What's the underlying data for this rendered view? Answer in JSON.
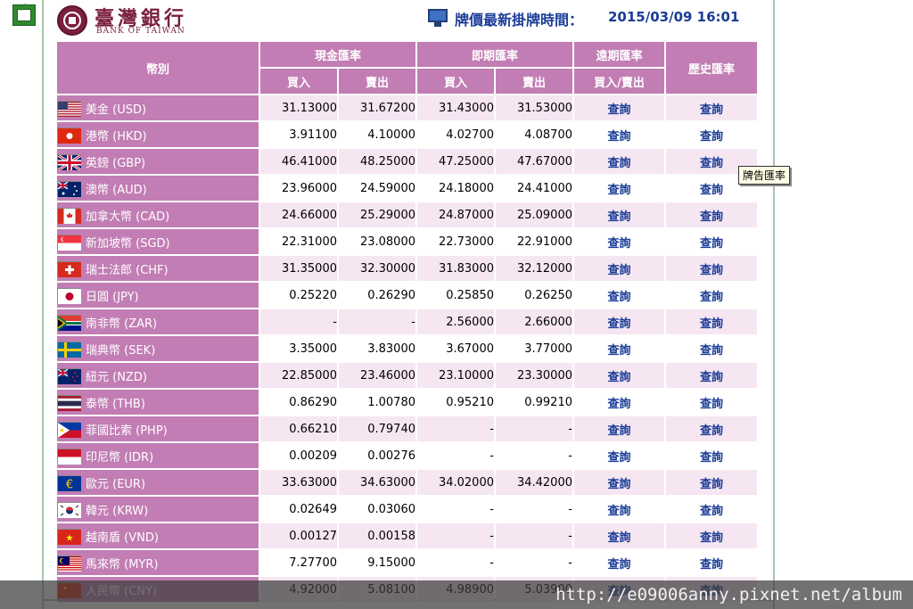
{
  "bank": {
    "name_zh": "臺灣銀行",
    "name_en": "BANK OF TAIWAN",
    "color": "#7a1f3d"
  },
  "update": {
    "label": "牌價最新掛牌時間：",
    "value": "2015/03/09 16:01"
  },
  "table": {
    "headers": {
      "currency": "幣別",
      "cash": "現金匯率",
      "spot": "即期匯率",
      "forward": "遠期匯率",
      "history": "歷史匯率",
      "buy": "買入",
      "sell": "賣出",
      "buy_sell": "買入/賣出"
    },
    "link_text": "查詢",
    "rows": [
      {
        "name": "美金 (USD)",
        "flag": "us",
        "cash_buy": "31.13000",
        "cash_sell": "31.67200",
        "spot_buy": "31.43000",
        "spot_sell": "31.53000"
      },
      {
        "name": "港幣 (HKD)",
        "flag": "hk",
        "cash_buy": "3.91100",
        "cash_sell": "4.10000",
        "spot_buy": "4.02700",
        "spot_sell": "4.08700"
      },
      {
        "name": "英鎊 (GBP)",
        "flag": "gb",
        "cash_buy": "46.41000",
        "cash_sell": "48.25000",
        "spot_buy": "47.25000",
        "spot_sell": "47.67000"
      },
      {
        "name": "澳幣 (AUD)",
        "flag": "au",
        "cash_buy": "23.96000",
        "cash_sell": "24.59000",
        "spot_buy": "24.18000",
        "spot_sell": "24.41000"
      },
      {
        "name": "加拿大幣 (CAD)",
        "flag": "ca",
        "cash_buy": "24.66000",
        "cash_sell": "25.29000",
        "spot_buy": "24.87000",
        "spot_sell": "25.09000"
      },
      {
        "name": "新加坡幣 (SGD)",
        "flag": "sg",
        "cash_buy": "22.31000",
        "cash_sell": "23.08000",
        "spot_buy": "22.73000",
        "spot_sell": "22.91000"
      },
      {
        "name": "瑞士法郎 (CHF)",
        "flag": "ch",
        "cash_buy": "31.35000",
        "cash_sell": "32.30000",
        "spot_buy": "31.83000",
        "spot_sell": "32.12000"
      },
      {
        "name": "日圓 (JPY)",
        "flag": "jp",
        "cash_buy": "0.25220",
        "cash_sell": "0.26290",
        "spot_buy": "0.25850",
        "spot_sell": "0.26250"
      },
      {
        "name": "南非幣 (ZAR)",
        "flag": "za",
        "cash_buy": "-",
        "cash_sell": "-",
        "spot_buy": "2.56000",
        "spot_sell": "2.66000"
      },
      {
        "name": "瑞典幣 (SEK)",
        "flag": "se",
        "cash_buy": "3.35000",
        "cash_sell": "3.83000",
        "spot_buy": "3.67000",
        "spot_sell": "3.77000"
      },
      {
        "name": "紐元 (NZD)",
        "flag": "nz",
        "cash_buy": "22.85000",
        "cash_sell": "23.46000",
        "spot_buy": "23.10000",
        "spot_sell": "23.30000"
      },
      {
        "name": "泰幣 (THB)",
        "flag": "th",
        "cash_buy": "0.86290",
        "cash_sell": "1.00780",
        "spot_buy": "0.95210",
        "spot_sell": "0.99210"
      },
      {
        "name": "菲國比索 (PHP)",
        "flag": "ph",
        "cash_buy": "0.66210",
        "cash_sell": "0.79740",
        "spot_buy": "-",
        "spot_sell": "-"
      },
      {
        "name": "印尼幣 (IDR)",
        "flag": "id",
        "cash_buy": "0.00209",
        "cash_sell": "0.00276",
        "spot_buy": "-",
        "spot_sell": "-"
      },
      {
        "name": "歐元 (EUR)",
        "flag": "eu",
        "cash_buy": "33.63000",
        "cash_sell": "34.63000",
        "spot_buy": "34.02000",
        "spot_sell": "34.42000"
      },
      {
        "name": "韓元 (KRW)",
        "flag": "kr",
        "cash_buy": "0.02649",
        "cash_sell": "0.03060",
        "spot_buy": "-",
        "spot_sell": "-"
      },
      {
        "name": "越南盾 (VND)",
        "flag": "vn",
        "cash_buy": "0.00127",
        "cash_sell": "0.00158",
        "spot_buy": "-",
        "spot_sell": "-"
      },
      {
        "name": "馬來幣 (MYR)",
        "flag": "my",
        "cash_buy": "7.27700",
        "cash_sell": "9.15000",
        "spot_buy": "-",
        "spot_sell": "-"
      },
      {
        "name": "人民幣 (CNY)",
        "flag": "cn",
        "cash_buy": "4.92000",
        "cash_sell": "5.08100",
        "spot_buy": "4.98900",
        "spot_sell": "5.03900"
      }
    ]
  },
  "tooltip": "牌告匯率",
  "watermark": "http://e09006anny.pixnet.net/album",
  "colors": {
    "header_bg": "#c27db4",
    "row_alt_bg": "#f6e6f2",
    "link": "#1a3c96"
  }
}
